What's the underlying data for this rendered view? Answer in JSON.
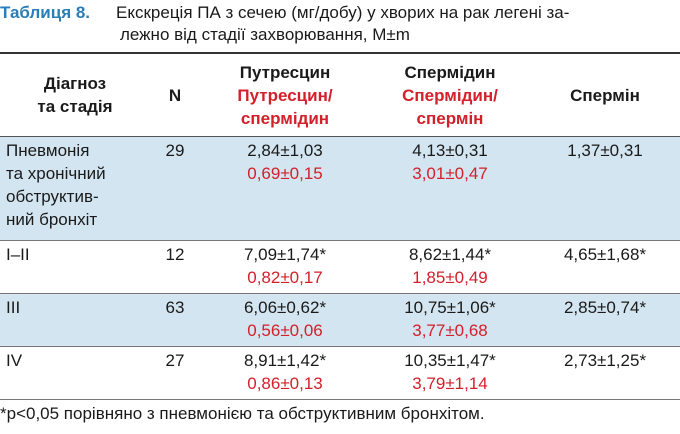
{
  "caption": {
    "label": "Таблиця 8.",
    "lines": [
      "Екскреція ПА з сечею (мг/добу) у хворих на рак легені за-",
      "лежно від стадії захворювання, M±m"
    ]
  },
  "table": {
    "header": {
      "diagnosis": [
        "Діагноз",
        "та стадія"
      ],
      "n": "N",
      "putrescine": "Путресцин",
      "put_spd": [
        "Путресцин/",
        "спермідин"
      ],
      "spermidine": "Спермідин",
      "spd_spm": [
        "Спермідин/",
        "спермін"
      ],
      "spermine": "Спермін"
    },
    "rows": [
      {
        "diagnosis": [
          "Пневмонія",
          "та хронічний",
          "обструктив-",
          "ний бронхіт"
        ],
        "n": "29",
        "putrescine": "2,84±1,03",
        "put_spd": "0,69±0,15",
        "spermidine": "4,13±0,31",
        "spd_spm": "3,01±0,47",
        "spermine": "1,37±0,31"
      },
      {
        "diagnosis": [
          "I–II"
        ],
        "n": "12",
        "putrescine": "7,09±1,74*",
        "put_spd": "0,82±0,17",
        "spermidine": "8,62±1,44*",
        "spd_spm": "1,85±0,49",
        "spermine": "4,65±1,68*"
      },
      {
        "diagnosis": [
          "III"
        ],
        "n": "63",
        "putrescine": "6,06±0,62*",
        "put_spd": "0,56±0,06",
        "spermidine": "10,75±1,06*",
        "spd_spm": "3,77±0,68",
        "spermine": "2,85±0,74*"
      },
      {
        "diagnosis": [
          "IV"
        ],
        "n": "27",
        "putrescine": "8,91±1,42*",
        "put_spd": "0,86±0,13",
        "spermidine": "10,35±1,47*",
        "spd_spm": "3,79±1,14",
        "spermine": "2,73±1,25*"
      }
    ]
  },
  "footnote": "*p<0,05 порівняно з пневмонією та обструктивним бронхітом."
}
